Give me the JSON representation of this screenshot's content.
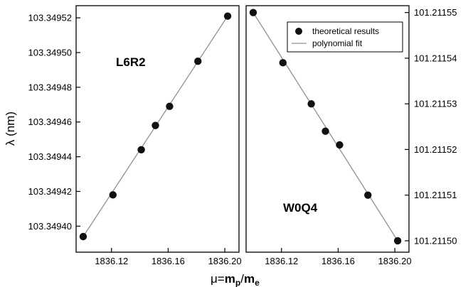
{
  "chart_data": [
    {
      "type": "scatter",
      "panel_label": "L6R2",
      "xlabel": {
        "mu": "μ=",
        "m_p": "m",
        "p_sub": "p",
        "slash": "/",
        "m_e": "m",
        "e_sub": "e"
      },
      "ylabel": "λ (nm)",
      "xlim": [
        1836.095,
        1836.21
      ],
      "ylim": [
        103.349385,
        103.349527
      ],
      "xticks": [
        "1836.12",
        "1836.16",
        "1836.20"
      ],
      "yticks": [
        "103.34940",
        "103.34942",
        "103.34944",
        "103.34946",
        "103.34948",
        "103.34950",
        "103.34952"
      ],
      "series": [
        {
          "name": "theoretical results",
          "x": [
            1836.1,
            1836.121,
            1836.141,
            1836.151,
            1836.161,
            1836.181,
            1836.202
          ],
          "y": [
            103.349394,
            103.349418,
            103.349444,
            103.349458,
            103.349469,
            103.349495,
            103.349521
          ]
        }
      ],
      "fit_line": {
        "x": [
          1836.1,
          1836.202
        ],
        "y": [
          103.349394,
          103.349521
        ]
      },
      "fit_name": "polynomial fit"
    },
    {
      "type": "scatter",
      "panel_label": "W0Q4",
      "xlim": [
        1836.095,
        1836.21
      ],
      "ylim": [
        101.2114975,
        101.2115515
      ],
      "xticks": [
        "1836.12",
        "1836.16",
        "1836.20"
      ],
      "yticks": [
        "101.21150",
        "101.21151",
        "101.21152",
        "101.21153",
        "101.21154",
        "101.21155"
      ],
      "legend": {
        "position": "top-right",
        "entries": [
          "theoretical results",
          "polynomial fit"
        ]
      },
      "series": [
        {
          "name": "theoretical results",
          "x": [
            1836.1,
            1836.121,
            1836.141,
            1836.151,
            1836.161,
            1836.181,
            1836.202
          ],
          "y": [
            101.21155,
            101.211539,
            101.21153,
            101.211524,
            101.211521,
            101.21151,
            101.2115
          ]
        }
      ],
      "fit_line": {
        "x": [
          1836.1,
          1836.202
        ],
        "y": [
          101.21155,
          101.2115
        ]
      },
      "fit_name": "polynomial fit"
    }
  ],
  "colors": {
    "marker": "#111111",
    "fit_line": "#909090",
    "axis": "#000000"
  }
}
